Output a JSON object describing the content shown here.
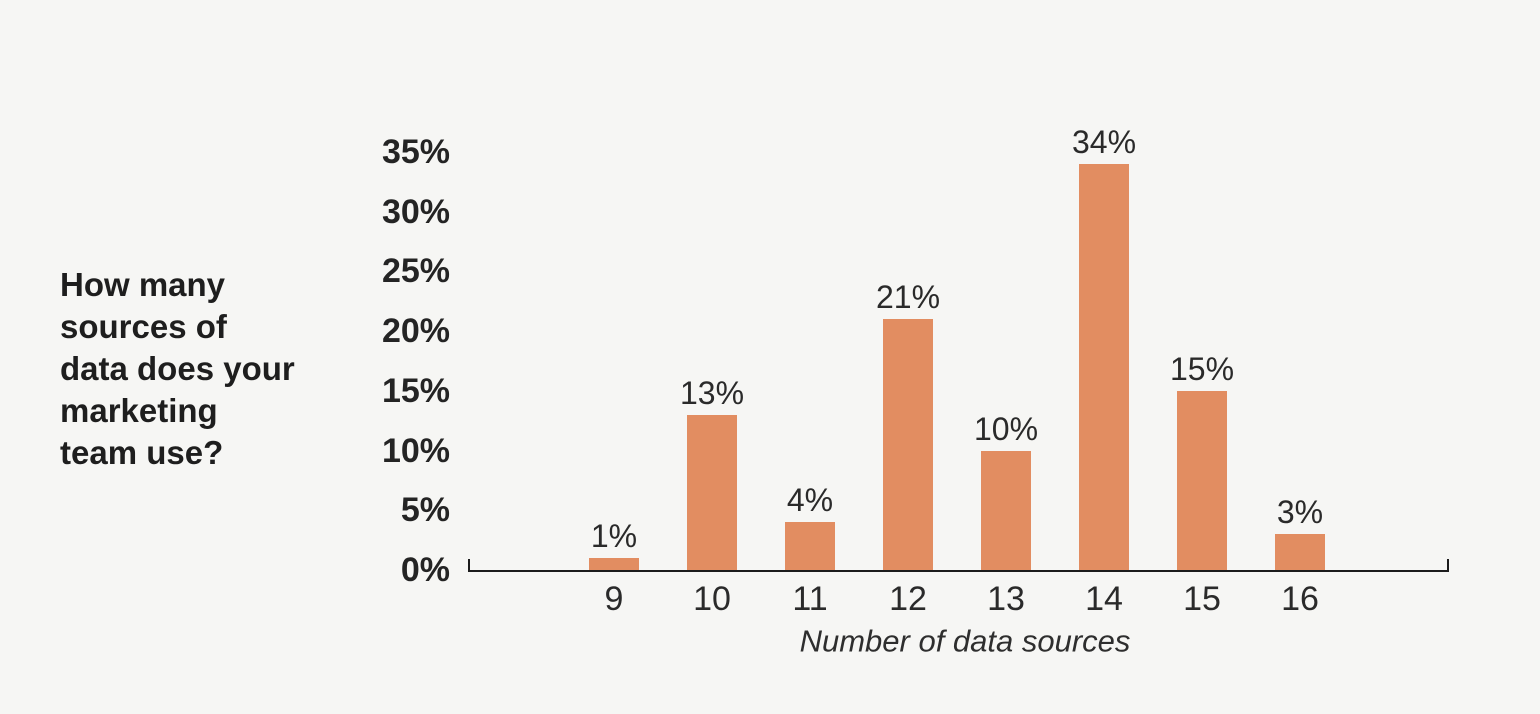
{
  "title": {
    "text": "How many sources of data does your marketing team use?",
    "wrapped": "How many\nsources of\ndata does your\nmarketing\nteam use?"
  },
  "chart_data": {
    "type": "bar",
    "title": "How many sources of data does your marketing team use?",
    "categories": [
      "9",
      "10",
      "11",
      "12",
      "13",
      "14",
      "15",
      "16"
    ],
    "values": [
      1,
      13,
      4,
      21,
      10,
      34,
      15,
      3
    ],
    "data_labels": [
      "1%",
      "13%",
      "4%",
      "21%",
      "10%",
      "34%",
      "15%",
      "3%"
    ],
    "xlabel": "Number of data sources",
    "ylabel": "",
    "y_ticks": [
      0,
      5,
      10,
      15,
      20,
      25,
      30,
      35
    ],
    "y_tick_labels": [
      "0%",
      "5%",
      "10%",
      "15%",
      "20%",
      "25%",
      "30%",
      "35%"
    ],
    "ylim": [
      0,
      35
    ],
    "grid": false,
    "legend": "none",
    "bar_color": "#e28d61"
  },
  "colors": {
    "background": "#f6f6f4",
    "bar": "#e28d61",
    "axis": "#1c1c1c",
    "title_text": "#1e1e1e",
    "label_text": "#2a2a2a"
  }
}
